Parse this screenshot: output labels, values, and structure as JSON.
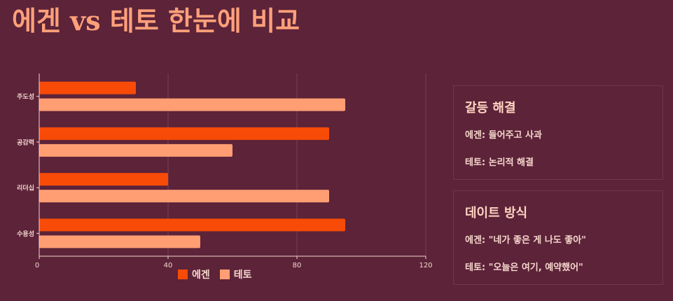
{
  "page": {
    "title": "에겐 vs 테토 한눈에 비교"
  },
  "chart_data": {
    "type": "bar",
    "orientation": "horizontal",
    "categories": [
      "주도성",
      "공감력",
      "리더십",
      "수용성"
    ],
    "series": [
      {
        "name": "에겐",
        "color": "#f74b07",
        "values": [
          30,
          90,
          40,
          95
        ]
      },
      {
        "name": "테토",
        "color": "#ff9e73",
        "values": [
          95,
          60,
          90,
          50
        ]
      }
    ],
    "xlim": [
      0,
      120
    ],
    "xticks": [
      0,
      40,
      80,
      120
    ],
    "grid": "vertical",
    "legend_position": "bottom-center"
  },
  "cards": [
    {
      "title": "갈등 해결",
      "lines": [
        "에겐: 들어주고 사과",
        "테토: 논리적 해결"
      ]
    },
    {
      "title": "데이트 방식",
      "lines": [
        "에겐: \"네가 좋은 게 나도 좋아\"",
        "테토: \"오늘은 여기, 예약했어\""
      ]
    }
  ]
}
